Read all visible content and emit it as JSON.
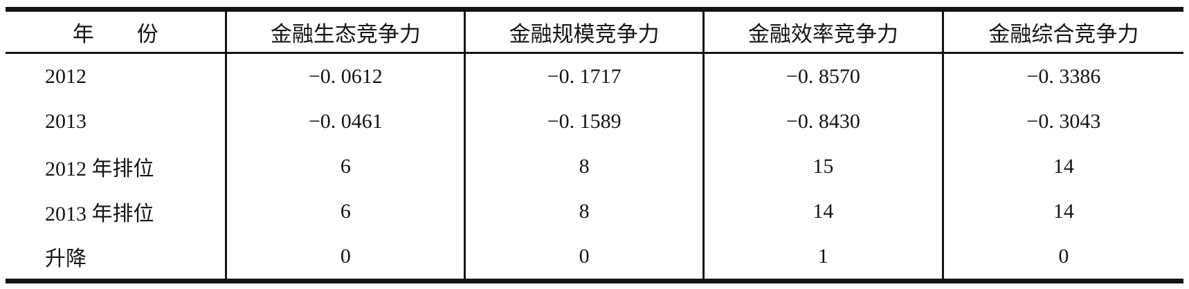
{
  "table": {
    "headers": [
      "年　　份",
      "金融生态竞争力",
      "金融规模竞争力",
      "金融效率竞争力",
      "金融综合竞争力"
    ],
    "rows": [
      {
        "label": "2012",
        "cells": [
          "−0. 0612",
          "−0. 1717",
          "−0. 8570",
          "−0. 3386"
        ]
      },
      {
        "label": "2013",
        "cells": [
          "−0. 0461",
          "−0. 1589",
          "−0. 8430",
          "−0. 3043"
        ]
      },
      {
        "label": "2012 年排位",
        "cells": [
          "6",
          "8",
          "15",
          "14"
        ]
      },
      {
        "label": "2013 年排位",
        "cells": [
          "6",
          "8",
          "14",
          "14"
        ]
      },
      {
        "label": "升降",
        "cells": [
          "0",
          "0",
          "1",
          "0"
        ]
      }
    ],
    "colors": {
      "rule": "#141414",
      "text": "#141414",
      "background": "#ffffff"
    }
  }
}
